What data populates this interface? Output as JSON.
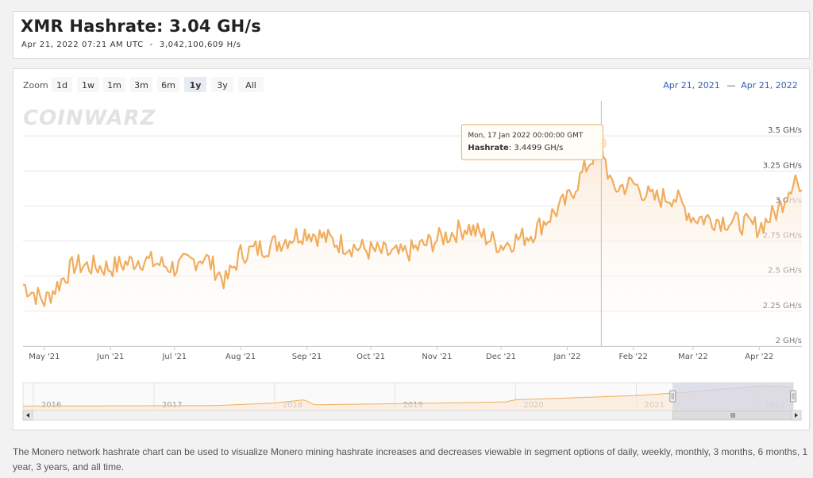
{
  "header": {
    "title": "XMR Hashrate: 3.04 GH/s",
    "timestamp": "Apr 21, 2022 07:21 AM UTC",
    "separator": "-",
    "exact_value": "3,042,100,609 H/s"
  },
  "zoom": {
    "label": "Zoom",
    "buttons": [
      "1d",
      "1w",
      "1m",
      "3m",
      "6m",
      "1y",
      "3y",
      "All"
    ],
    "selected": "1y"
  },
  "range": {
    "from": "Apr 21, 2021",
    "dash": "—",
    "to": "Apr 21, 2022"
  },
  "watermark": "COINWARZ",
  "tooltip": {
    "date": "Mon, 17 Jan 2022 00:00:00 GMT",
    "label": "Hashrate",
    "value": "3.4499 GH/s"
  },
  "colors": {
    "line": "#f0ad5e",
    "area_top": "#fbe8d4",
    "navigator_mask": "#d3d6e6"
  },
  "navigator": {
    "years": [
      "2016",
      "2017",
      "2018",
      "2019",
      "2020",
      "2021",
      "2022"
    ],
    "selected_range": [
      "2021-04-21",
      "2022-04-21"
    ]
  },
  "chart_data": {
    "type": "line",
    "series": [
      {
        "name": "Hashrate",
        "unit": "GH/s",
        "anchors": [
          [
            "2021-04-21",
            2.44
          ],
          [
            "2021-05-01",
            2.32
          ],
          [
            "2021-05-15",
            2.58
          ],
          [
            "2021-06-01",
            2.56
          ],
          [
            "2021-06-15",
            2.62
          ],
          [
            "2021-07-01",
            2.56
          ],
          [
            "2021-07-15",
            2.64
          ],
          [
            "2021-07-25",
            2.46
          ],
          [
            "2021-08-01",
            2.66
          ],
          [
            "2021-08-15",
            2.72
          ],
          [
            "2021-09-01",
            2.82
          ],
          [
            "2021-09-15",
            2.74
          ],
          [
            "2021-10-01",
            2.68
          ],
          [
            "2021-10-15",
            2.65
          ],
          [
            "2021-11-01",
            2.76
          ],
          [
            "2021-11-15",
            2.85
          ],
          [
            "2021-12-01",
            2.72
          ],
          [
            "2021-12-15",
            2.8
          ],
          [
            "2022-01-01",
            3.04
          ],
          [
            "2022-01-10",
            3.28
          ],
          [
            "2022-01-17",
            3.45
          ],
          [
            "2022-01-22",
            3.12
          ],
          [
            "2022-02-01",
            3.16
          ],
          [
            "2022-02-10",
            3.05
          ],
          [
            "2022-02-20",
            3.07
          ],
          [
            "2022-03-01",
            2.92
          ],
          [
            "2022-03-15",
            2.9
          ],
          [
            "2022-04-01",
            2.85
          ],
          [
            "2022-04-10",
            2.97
          ],
          [
            "2022-04-18",
            3.22
          ],
          [
            "2022-04-21",
            3.04
          ]
        ]
      }
    ],
    "x_ticks": [
      "May '21",
      "Jun '21",
      "Jul '21",
      "Aug '21",
      "Sep '21",
      "Oct '21",
      "Nov '21",
      "Dec '21",
      "Jan '22",
      "Feb '22",
      "Mar '22",
      "Apr '22"
    ],
    "y_ticks": [
      {
        "value": 2.0,
        "label": "2 GH/s"
      },
      {
        "value": 2.25,
        "label": "2.25 GH/s"
      },
      {
        "value": 2.5,
        "label": "2.5 GH/s"
      },
      {
        "value": 2.75,
        "label": "2.75 GH/s"
      },
      {
        "value": 3.0,
        "label": "3 GH/s"
      },
      {
        "value": 3.25,
        "label": "3.25 GH/s"
      },
      {
        "value": 3.5,
        "label": "3.5 GH/s"
      }
    ],
    "ylim": [
      2.0,
      3.75
    ],
    "xlim": [
      "2021-04-21",
      "2022-04-21"
    ],
    "highlight": {
      "date": "2022-01-17",
      "value": 3.4499
    },
    "grid": true,
    "legend": "none"
  },
  "description": "The Monero network hashrate chart can be used to visualize Monero mining hashrate increases and decreases viewable in segment options of daily, weekly, monthly, 3 months, 6 months, 1 year, 3 years, and all time."
}
